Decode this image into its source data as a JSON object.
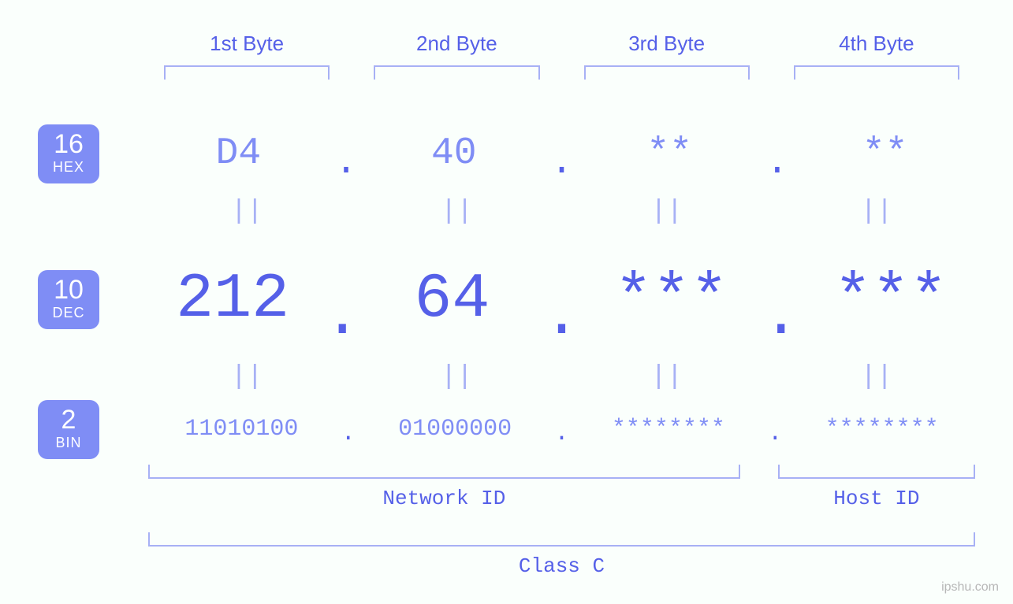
{
  "colors": {
    "background": "#fafffc",
    "primary_text": "#5560e8",
    "faded_text": "#7f8df5",
    "bracket": "#a7b1f5",
    "equals": "#a7b1f5",
    "badge_bg": "#7f8df5",
    "badge_text": "#ffffff",
    "watermark": "#b7b7b7"
  },
  "byte_headers": [
    "1st Byte",
    "2nd Byte",
    "3rd Byte",
    "4th Byte"
  ],
  "badges": {
    "hex": {
      "base": "16",
      "label": "HEX"
    },
    "dec": {
      "base": "10",
      "label": "DEC"
    },
    "bin": {
      "base": "2",
      "label": "BIN"
    }
  },
  "equals_symbol": "||",
  "dot_symbol": ".",
  "hex": {
    "type": "byte-row",
    "format": "hexadecimal",
    "fontsize": 48,
    "color": "#7f8df5",
    "bytes": [
      "D4",
      "40",
      "**",
      "**"
    ]
  },
  "dec": {
    "type": "byte-row",
    "format": "decimal",
    "fontsize": 80,
    "color": "#5560e8",
    "bytes": [
      "212",
      "64",
      "***",
      "***"
    ]
  },
  "bin": {
    "type": "byte-row",
    "format": "binary",
    "fontsize": 30,
    "color": "#7f8df5",
    "bytes": [
      "11010100",
      "01000000",
      "********",
      "********"
    ]
  },
  "id_labels": {
    "network": {
      "label": "Network ID",
      "byte_span": 3
    },
    "host": {
      "label": "Host ID",
      "byte_span": 1
    }
  },
  "class_label": "Class C",
  "watermark": "ipshu.com"
}
